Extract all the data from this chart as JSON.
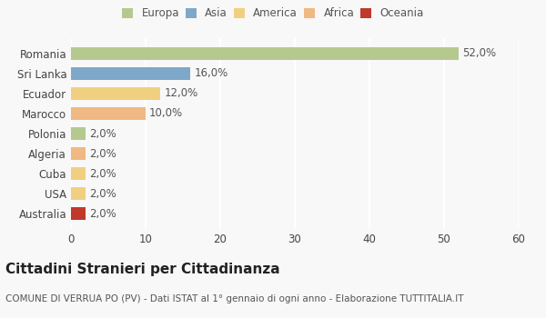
{
  "countries": [
    "Romania",
    "Sri Lanka",
    "Ecuador",
    "Marocco",
    "Polonia",
    "Algeria",
    "Cuba",
    "USA",
    "Australia"
  ],
  "values": [
    52.0,
    16.0,
    12.0,
    10.0,
    2.0,
    2.0,
    2.0,
    2.0,
    2.0
  ],
  "colors": [
    "#b5c98e",
    "#7ea8c9",
    "#f0d080",
    "#f0b882",
    "#b5c98e",
    "#f0b882",
    "#f0d080",
    "#f0d080",
    "#c0392b"
  ],
  "legend_labels": [
    "Europa",
    "Asia",
    "America",
    "Africa",
    "Oceania"
  ],
  "legend_colors": [
    "#b5c98e",
    "#7ea8c9",
    "#f0d080",
    "#f0b882",
    "#c0392b"
  ],
  "title": "Cittadini Stranieri per Cittadinanza",
  "subtitle": "COMUNE DI VERRUA PO (PV) - Dati ISTAT al 1° gennaio di ogni anno - Elaborazione TUTTITALIA.IT",
  "xlim": [
    0,
    60
  ],
  "xticks": [
    0,
    10,
    20,
    30,
    40,
    50,
    60
  ],
  "background_color": "#f8f8f8",
  "grid_color": "#ffffff",
  "bar_height": 0.65,
  "title_fontsize": 11,
  "subtitle_fontsize": 7.5,
  "tick_fontsize": 8.5,
  "label_fontsize": 8.5,
  "legend_fontsize": 8.5
}
